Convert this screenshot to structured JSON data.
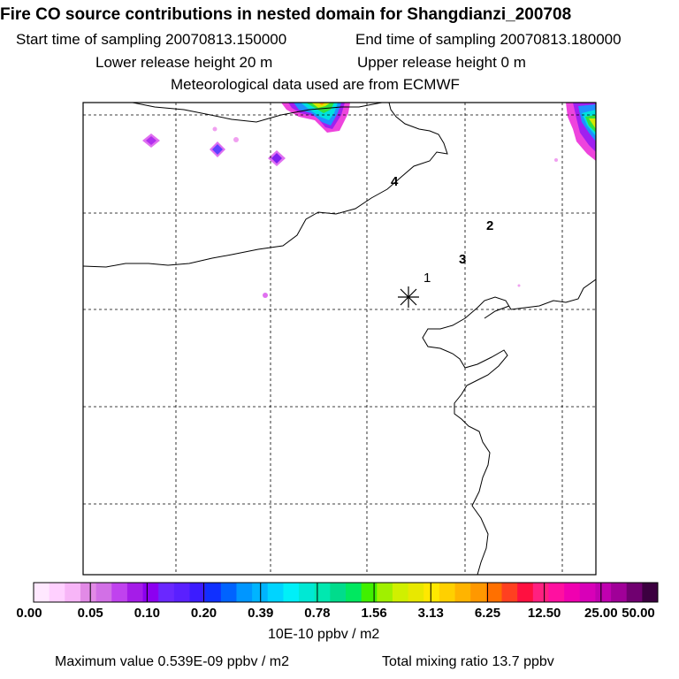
{
  "header": {
    "title": "Fire CO source contributions in nested domain for Shangdianzi_200708",
    "start_time": "Start time of sampling 20070813.150000",
    "end_time": "End time of sampling 20070813.180000",
    "lower_release": "Lower release height   20 m",
    "upper_release": "Upper release height    0 m",
    "met_data": "Meteorological data used are from ECMWF"
  },
  "map": {
    "site_labels": [
      "1",
      "2",
      "3",
      "4"
    ],
    "release_marker": "release-site"
  },
  "legend": {
    "unit": "10E-10 ppbv / m2",
    "ticks": [
      "0.00",
      "0.05",
      "0.10",
      "0.20",
      "0.39",
      "0.78",
      "1.56",
      "3.13",
      "6.25",
      "12.50",
      "25.00",
      "50.00"
    ],
    "colors": [
      "#ffe8ff",
      "#ffd0ff",
      "#f7b5f7",
      "#e28ae6",
      "#d270e6",
      "#c042ee",
      "#a51ce8",
      "#8c00f0",
      "#6a28ff",
      "#5a20ff",
      "#3c1cff",
      "#1030ff",
      "#0063ff",
      "#0096ff",
      "#00b4ff",
      "#00d4ff",
      "#00f0f8",
      "#00e8d4",
      "#00e8b0",
      "#00dc8c",
      "#00e860",
      "#40f000",
      "#a0f000",
      "#d0f000",
      "#e8e800",
      "#ffe800",
      "#ffd000",
      "#ffb400",
      "#ff9800",
      "#ff7000",
      "#ff4020",
      "#ff1040",
      "#ff2080",
      "#ff10a0",
      "#f000b0",
      "#d800b8",
      "#c000b0",
      "#a00098",
      "#700070",
      "#3c0040"
    ]
  },
  "footer": {
    "max_value": "Maximum value  0.539E-09 ppbv / m2",
    "total_mixing": "Total mixing ratio       13.7 ppbv"
  }
}
